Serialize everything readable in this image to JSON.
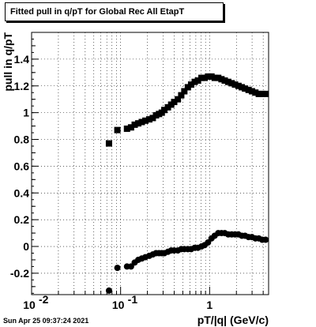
{
  "title": "Fitted pull in q/pT for Global Rec All EtapT",
  "timestamp": "Sun Apr 25 09:37:24 2021",
  "chart_data": {
    "type": "scatter",
    "xlabel": "pT/|q| (GeV/c)",
    "ylabel": "pull in q/pT",
    "xscale": "log",
    "xlim": [
      0.01,
      4.6
    ],
    "ylim": [
      -0.36,
      1.6
    ],
    "grid": true,
    "x_tick_labels": [
      {
        "base": "10",
        "exp": "-2",
        "x": 0.01
      },
      {
        "base": "10",
        "exp": "-1",
        "x": 0.1
      },
      {
        "text": "1",
        "x": 1
      }
    ],
    "y_tick_labels": [
      {
        "text": "-0.2",
        "y": -0.2
      },
      {
        "text": "0",
        "y": 0
      },
      {
        "text": "0.2",
        "y": 0.2
      },
      {
        "text": "0.4",
        "y": 0.4
      },
      {
        "text": "0.6",
        "y": 0.6
      },
      {
        "text": "0.8",
        "y": 0.8
      },
      {
        "text": "1",
        "y": 1
      },
      {
        "text": "1.2",
        "y": 1.2
      },
      {
        "text": "1.4",
        "y": 1.4
      }
    ],
    "series": [
      {
        "marker": "square",
        "color": "#000000",
        "points": [
          [
            0.074,
            0.77
          ],
          [
            0.092,
            0.87
          ],
          [
            0.118,
            0.88
          ],
          [
            0.131,
            0.89
          ],
          [
            0.144,
            0.91
          ],
          [
            0.158,
            0.92
          ],
          [
            0.173,
            0.93
          ],
          [
            0.19,
            0.94
          ],
          [
            0.21,
            0.95
          ],
          [
            0.23,
            0.96
          ],
          [
            0.25,
            0.98
          ],
          [
            0.27,
            0.99
          ],
          [
            0.29,
            1.0
          ],
          [
            0.31,
            1.02
          ],
          [
            0.34,
            1.04
          ],
          [
            0.37,
            1.06
          ],
          [
            0.4,
            1.08
          ],
          [
            0.44,
            1.1
          ],
          [
            0.48,
            1.13
          ],
          [
            0.52,
            1.16
          ],
          [
            0.57,
            1.19
          ],
          [
            0.62,
            1.21
          ],
          [
            0.68,
            1.23
          ],
          [
            0.74,
            1.24
          ],
          [
            0.81,
            1.26
          ],
          [
            0.88,
            1.26
          ],
          [
            0.96,
            1.27
          ],
          [
            1.05,
            1.27
          ],
          [
            1.14,
            1.26
          ],
          [
            1.25,
            1.26
          ],
          [
            1.36,
            1.25
          ],
          [
            1.48,
            1.24
          ],
          [
            1.62,
            1.23
          ],
          [
            1.77,
            1.22
          ],
          [
            1.93,
            1.21
          ],
          [
            2.11,
            1.2
          ],
          [
            2.3,
            1.19
          ],
          [
            2.5,
            1.18
          ],
          [
            2.74,
            1.17
          ],
          [
            2.99,
            1.16
          ],
          [
            3.27,
            1.15
          ],
          [
            3.57,
            1.14
          ],
          [
            3.9,
            1.14
          ],
          [
            4.26,
            1.14
          ]
        ]
      },
      {
        "marker": "circle",
        "color": "#000000",
        "points": [
          [
            0.074,
            -0.33
          ],
          [
            0.092,
            -0.16
          ],
          [
            0.118,
            -0.15
          ],
          [
            0.131,
            -0.15
          ],
          [
            0.144,
            -0.12
          ],
          [
            0.158,
            -0.1
          ],
          [
            0.173,
            -0.09
          ],
          [
            0.19,
            -0.08
          ],
          [
            0.21,
            -0.07
          ],
          [
            0.23,
            -0.06
          ],
          [
            0.25,
            -0.05
          ],
          [
            0.27,
            -0.05
          ],
          [
            0.29,
            -0.05
          ],
          [
            0.31,
            -0.05
          ],
          [
            0.34,
            -0.04
          ],
          [
            0.37,
            -0.03
          ],
          [
            0.4,
            -0.03
          ],
          [
            0.44,
            -0.03
          ],
          [
            0.48,
            -0.02
          ],
          [
            0.52,
            -0.02
          ],
          [
            0.57,
            -0.02
          ],
          [
            0.62,
            -0.02
          ],
          [
            0.68,
            -0.01
          ],
          [
            0.74,
            -0.01
          ],
          [
            0.81,
            0.0
          ],
          [
            0.88,
            0.01
          ],
          [
            0.96,
            0.03
          ],
          [
            1.05,
            0.06
          ],
          [
            1.14,
            0.08
          ],
          [
            1.25,
            0.1
          ],
          [
            1.36,
            0.1
          ],
          [
            1.48,
            0.1
          ],
          [
            1.62,
            0.09
          ],
          [
            1.77,
            0.09
          ],
          [
            1.93,
            0.09
          ],
          [
            2.11,
            0.09
          ],
          [
            2.3,
            0.08
          ],
          [
            2.5,
            0.08
          ],
          [
            2.74,
            0.07
          ],
          [
            2.99,
            0.07
          ],
          [
            3.27,
            0.06
          ],
          [
            3.57,
            0.06
          ],
          [
            3.9,
            0.05
          ],
          [
            4.26,
            0.05
          ]
        ]
      }
    ]
  }
}
